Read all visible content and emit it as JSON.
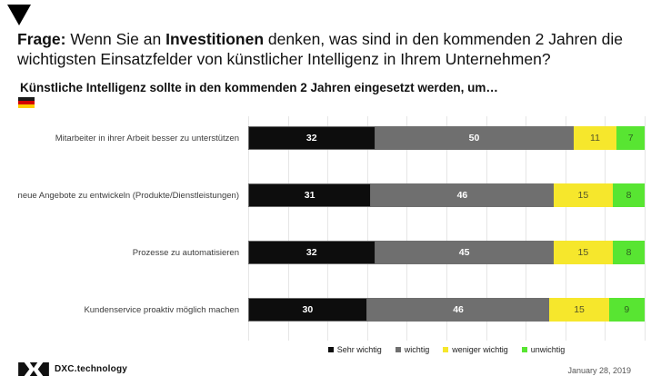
{
  "icons": {
    "corner": "down-triangle",
    "flag": "germany-flag",
    "logo": "dxc-logo"
  },
  "header": {
    "prefix": "Frage:",
    "part1": " Wenn Sie an ",
    "bold_word": "Investitionen",
    "part2": " denken, was sind in den kommenden 2 Jahren die wichtigsten Einsatzfelder von künstlicher Intelligenz in Ihrem Unternehmen?",
    "subtitle": "Künstliche Intelligenz sollte in den kommenden 2 Jahren eingesetzt werden, um…"
  },
  "chart_data": {
    "type": "bar",
    "orientation": "horizontal",
    "stacked": true,
    "unit": "percent",
    "xlim": [
      0,
      100
    ],
    "grid": "vertical lines every 10%",
    "legend_position": "bottom",
    "title": "Künstliche Intelligenz sollte in den kommenden 2 Jahren eingesetzt werden, um…",
    "categories": [
      "Mitarbeiter in ihrer Arbeit besser zu unterstützen",
      "neue Angebote zu entwickeln (Produkte/Dienstleistungen)",
      "Prozesse zu automatisieren",
      "Kundenservice proaktiv möglich machen"
    ],
    "series": [
      {
        "name": "Sehr wichtig",
        "color": "#0d0d0d",
        "text_color": "#ffffff",
        "bold_values": true,
        "values": [
          32,
          31,
          32,
          30
        ]
      },
      {
        "name": "wichtig",
        "color": "#6f6f6f",
        "text_color": "#ffffff",
        "bold_values": true,
        "values": [
          50,
          46,
          45,
          46
        ]
      },
      {
        "name": "weniger wichtig",
        "color": "#f6e72c",
        "text_color": "#55552a",
        "bold_values": false,
        "values": [
          11,
          15,
          15,
          15
        ]
      },
      {
        "name": "unwichtig",
        "color": "#58e532",
        "text_color": "#2f6420",
        "bold_values": false,
        "values": [
          7,
          8,
          8,
          9
        ]
      }
    ]
  },
  "footer": {
    "brand": "DXC.technology",
    "date": "January 28, 2019"
  }
}
